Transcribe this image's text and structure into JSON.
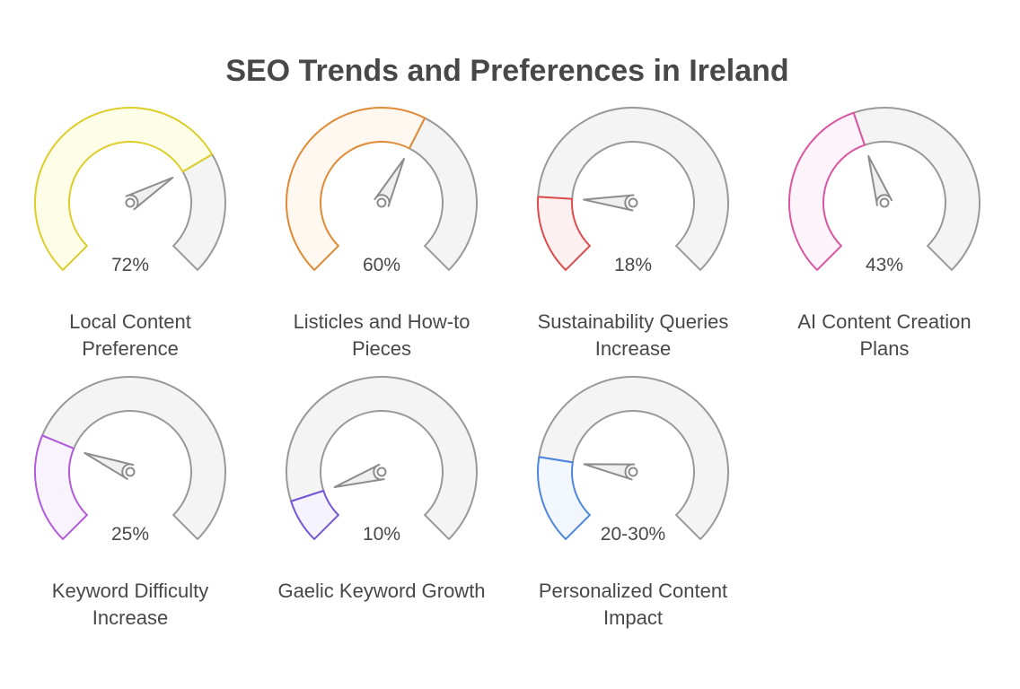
{
  "title": "SEO Trends and Preferences in Ireland",
  "chart_data": {
    "type": "gauge",
    "title": "SEO Trends and Preferences in Ireland",
    "unit": "%",
    "range": [
      0,
      100
    ],
    "gauges": [
      {
        "label": "Local Content Preference",
        "value": 72,
        "display": "72%",
        "color": "#dccd2a",
        "fill": "#fefde8"
      },
      {
        "label": "Listicles and How-to Pieces",
        "value": 60,
        "display": "60%",
        "color": "#df8a35",
        "fill": "#fef8f1"
      },
      {
        "label": "Sustainability Queries Increase",
        "value": 18,
        "display": "18%",
        "color": "#dc4c4c",
        "fill": "#fdf0f0"
      },
      {
        "label": "AI Content Creation Plans",
        "value": 43,
        "display": "43%",
        "color": "#d9569f",
        "fill": "#fdf3fa"
      },
      {
        "label": "Keyword Difficulty Increase",
        "value": 25,
        "display": "25%",
        "color": "#b25bdc",
        "fill": "#f9f3fd"
      },
      {
        "label": "Gaelic Keyword Growth",
        "value": 10,
        "display": "10%",
        "color": "#7557d9",
        "fill": "#f5f3fd"
      },
      {
        "label": "Personalized Content Impact",
        "value": 20,
        "display": "20-30%",
        "color": "#4d86dc",
        "fill": "#f2f6fd"
      }
    ]
  }
}
